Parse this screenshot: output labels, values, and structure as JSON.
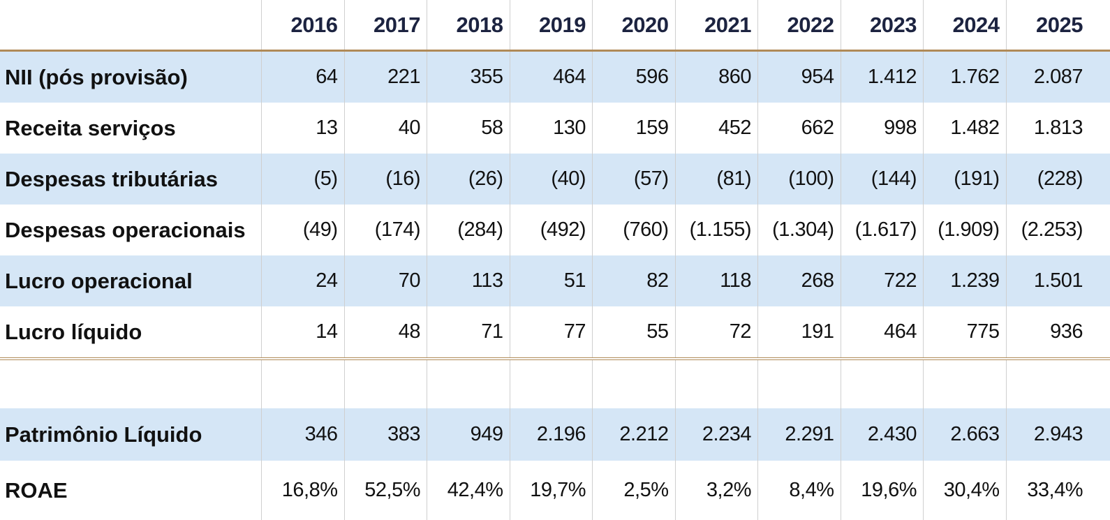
{
  "table": {
    "years": [
      "2016",
      "2017",
      "2018",
      "2019",
      "2020",
      "2021",
      "2022",
      "2023",
      "2024",
      "2025"
    ],
    "rows": [
      {
        "label": "NII (pós provisão)",
        "values": [
          "64",
          "221",
          "355",
          "464",
          "596",
          "860",
          "954",
          "1.412",
          "1.762",
          "2.087"
        ]
      },
      {
        "label": "Receita serviços",
        "values": [
          "13",
          "40",
          "58",
          "130",
          "159",
          "452",
          "662",
          "998",
          "1.482",
          "1.813"
        ]
      },
      {
        "label": "Despesas tributárias",
        "values": [
          "(5)",
          "(16)",
          "(26)",
          "(40)",
          "(57)",
          "(81)",
          "(100)",
          "(144)",
          "(191)",
          "(228)"
        ]
      },
      {
        "label": "Despesas operacionais",
        "values": [
          "(49)",
          "(174)",
          "(284)",
          "(492)",
          "(760)",
          "(1.155)",
          "(1.304)",
          "(1.617)",
          "(1.909)",
          "(2.253)"
        ]
      },
      {
        "label": "Lucro operacional",
        "values": [
          "24",
          "70",
          "113",
          "51",
          "82",
          "118",
          "268",
          "722",
          "1.239",
          "1.501"
        ]
      },
      {
        "label": "Lucro líquido",
        "values": [
          "14",
          "48",
          "71",
          "77",
          "55",
          "72",
          "191",
          "464",
          "775",
          "936"
        ]
      }
    ],
    "bottom_rows": [
      {
        "label": "Patrimônio Líquido",
        "values": [
          "346",
          "383",
          "949",
          "2.196",
          "2.212",
          "2.234",
          "2.291",
          "2.430",
          "2.663",
          "2.943"
        ]
      },
      {
        "label": "ROAE",
        "values": [
          "16,8%",
          "52,5%",
          "42,4%",
          "19,7%",
          "2,5%",
          "3,2%",
          "8,4%",
          "19,6%",
          "30,4%",
          "33,4%"
        ]
      }
    ]
  },
  "colors": {
    "row_shade": "#d5e6f6",
    "header_text": "#1c2340",
    "rule": "#b08a57"
  }
}
